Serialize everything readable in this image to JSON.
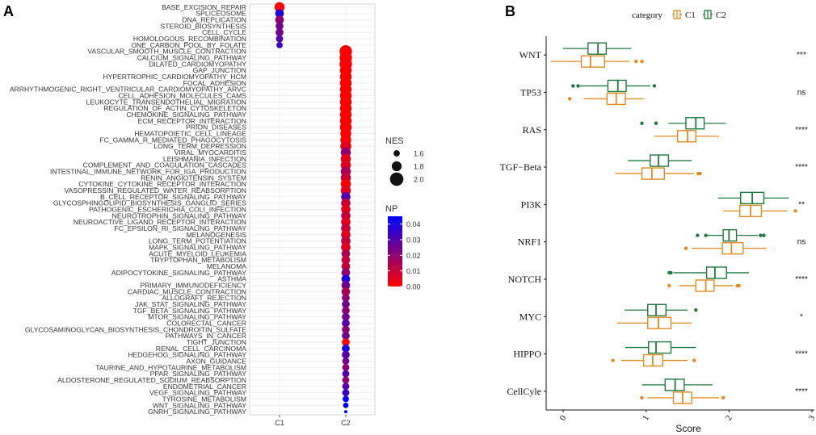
{
  "chart_data": [
    {
      "panel": "A",
      "type": "scatter",
      "subtype": "dot-plot",
      "x_categories": [
        "C1",
        "C2"
      ],
      "pathways": [
        "BASE_EXCISION_REPAIR",
        "SPLICEOSOME",
        "DNA_REPLICATION",
        "STEROID_BIOSYNTHESIS",
        "CELL_CYCLE",
        "HOMOLOGOUS_RECOMBINATION",
        "ONE_CARBON_POOL_BY_FOLATE",
        "VASCULAR_SMOOTH_MUSCLE_CONTRACTION",
        "CALCIUM_SIGNALING_PATHWAY",
        "DILATED_CARDIOMYOPATHY",
        "GAP_JUNCTION",
        "HYPERTROPHIC_CARDIOMYOPATHY_HCM",
        "FOCAL_ADHESION",
        "ARRHYTHMOGENIC_RIGHT_VENTRICULAR_CARDIOMYOPATHY_ARVC",
        "CELL_ADHESION_MOLECULES_CAMS",
        "LEUKOCYTE_TRANSENDOTHELIAL_MIGRATION",
        "REGULATION_OF_ACTIN_CYTOSKELETON",
        "CHEMOKINE_SIGNALING_PATHWAY",
        "ECM_RECEPTOR_INTERACTION",
        "PRION_DISEASES",
        "HEMATOPOIETIC_CELL_LINEAGE",
        "FC_GAMMA_R_MEDIATED_PHAGOCYTOSIS",
        "LONG_TERM_DEPRESSION",
        "VIRAL_MYOCARDITIS",
        "LEISHMANIA_INFECTION",
        "COMPLEMENT_AND_COAGULATION_CASCADES",
        "INTESTINAL_IMMUNE_NETWORK_FOR_IGA_PRODUCTION",
        "RENIN_ANGIOTENSIN_SYSTEM",
        "CYTOKINE_CYTOKINE_RECEPTOR_INTERACTION",
        "VASOPRESSIN_REGULATED_WATER_REABSORPTION",
        "B_CELL_RECEPTOR_SIGNALING_PATHWAY",
        "GLYCOSPHINGOLIPID_BIOSYNTHESIS_GANGLIO_SERIES",
        "PATHOGENIC_ESCHERICHIA_COLI_INFECTION",
        "NEUROTROPHIN_SIGNALING_PATHWAY",
        "NEUROACTIVE_LIGAND_RECEPTOR_INTERACTION",
        "FC_EPSILON_RI_SIGNALING_PATHWAY",
        "MELANOGENESIS",
        "LONG_TERM_POTENTIATION",
        "MAPK_SIGNALING_PATHWAY",
        "ACUTE_MYELOID_LEUKEMIA",
        "TRYPTOPHAN_METABOLISM",
        "MELANOMA",
        "ADIPOCYTOKINE_SIGNALING_PATHWAY",
        "ASTHMA",
        "PRIMARY_IMMUNODEFICIENCY",
        "CARDIAC_MUSCLE_CONTRACTION",
        "ALLOGRAFT_REJECTION",
        "JAK_STAT_SIGNALING_PATHWAY",
        "TGF_BETA_SIGNALING_PATHWAY",
        "MTOR_SIGNALING_PATHWAY",
        "COLORECTAL_CANCER",
        "GLYCOSAMINOGLYCAN_BIOSYNTHESIS_CHONDROITIN_SULFATE",
        "PATHWAYS_IN_CANCER",
        "TIGHT_JUNCTION",
        "RENAL_CELL_CARCINOMA",
        "HEDGEHOG_SIGNALING_PATHWAY",
        "AXON_GUIDANCE",
        "TAURINE_AND_HYPOTAURINE_METABOLISM",
        "PPAR_SIGNALING_PATHWAY",
        "ALDOSTERONE_REGULATED_SODIUM_REABSORPTION",
        "ENDOMETRIAL_CANCER",
        "VEGF_SIGNALING_PATHWAY",
        "TYROSINE_METABOLISM",
        "WNT_SIGNALING_PATHWAY",
        "GNRH_SIGNALING_PATHWAY"
      ],
      "points": [
        {
          "pathway": "BASE_EXCISION_REPAIR",
          "group": "C1",
          "nes": 1.9,
          "np": 0.0
        },
        {
          "pathway": "SPLICEOSOME",
          "group": "C1",
          "nes": 1.8,
          "np": 0.04
        },
        {
          "pathway": "DNA_REPLICATION",
          "group": "C1",
          "nes": 1.8,
          "np": 0.02
        },
        {
          "pathway": "STEROID_BIOSYNTHESIS",
          "group": "C1",
          "nes": 1.75,
          "np": 0.025
        },
        {
          "pathway": "CELL_CYCLE",
          "group": "C1",
          "nes": 1.75,
          "np": 0.025
        },
        {
          "pathway": "HOMOLOGOUS_RECOMBINATION",
          "group": "C1",
          "nes": 1.7,
          "np": 0.03
        },
        {
          "pathway": "ONE_CARBON_POOL_BY_FOLATE",
          "group": "C1",
          "nes": 1.65,
          "np": 0.035
        },
        {
          "pathway": "VASCULAR_SMOOTH_MUSCLE_CONTRACTION",
          "group": "C2",
          "nes": 2.05,
          "np": 0.0
        },
        {
          "pathway": "CALCIUM_SIGNALING_PATHWAY",
          "group": "C2",
          "nes": 2.05,
          "np": 0.0
        },
        {
          "pathway": "DILATED_CARDIOMYOPATHY",
          "group": "C2",
          "nes": 2.05,
          "np": 0.0
        },
        {
          "pathway": "GAP_JUNCTION",
          "group": "C2",
          "nes": 2.0,
          "np": 0.0
        },
        {
          "pathway": "HYPERTROPHIC_CARDIOMYOPATHY_HCM",
          "group": "C2",
          "nes": 2.0,
          "np": 0.0
        },
        {
          "pathway": "FOCAL_ADHESION",
          "group": "C2",
          "nes": 2.0,
          "np": 0.0
        },
        {
          "pathway": "ARRHYTHMOGENIC_RIGHT_VENTRICULAR_CARDIOMYOPATHY_ARVC",
          "group": "C2",
          "nes": 2.0,
          "np": 0.0
        },
        {
          "pathway": "CELL_ADHESION_MOLECULES_CAMS",
          "group": "C2",
          "nes": 2.0,
          "np": 0.0
        },
        {
          "pathway": "LEUKOCYTE_TRANSENDOTHELIAL_MIGRATION",
          "group": "C2",
          "nes": 2.0,
          "np": 0.0
        },
        {
          "pathway": "REGULATION_OF_ACTIN_CYTOSKELETON",
          "group": "C2",
          "nes": 2.0,
          "np": 0.0
        },
        {
          "pathway": "CHEMOKINE_SIGNALING_PATHWAY",
          "group": "C2",
          "nes": 2.0,
          "np": 0.0
        },
        {
          "pathway": "ECM_RECEPTOR_INTERACTION",
          "group": "C2",
          "nes": 2.0,
          "np": 0.0
        },
        {
          "pathway": "PRION_DISEASES",
          "group": "C2",
          "nes": 2.0,
          "np": 0.0
        },
        {
          "pathway": "HEMATOPOIETIC_CELL_LINEAGE",
          "group": "C2",
          "nes": 1.95,
          "np": 0.0
        },
        {
          "pathway": "FC_GAMMA_R_MEDIATED_PHAGOCYTOSIS",
          "group": "C2",
          "nes": 1.95,
          "np": 0.0
        },
        {
          "pathway": "LONG_TERM_DEPRESSION",
          "group": "C2",
          "nes": 1.95,
          "np": 0.005
        },
        {
          "pathway": "VIRAL_MYOCARDITIS",
          "group": "C2",
          "nes": 1.9,
          "np": 0.02
        },
        {
          "pathway": "LEISHMANIA_INFECTION",
          "group": "C2",
          "nes": 1.9,
          "np": 0.005
        },
        {
          "pathway": "COMPLEMENT_AND_COAGULATION_CASCADES",
          "group": "C2",
          "nes": 1.9,
          "np": 0.005
        },
        {
          "pathway": "INTESTINAL_IMMUNE_NETWORK_FOR_IGA_PRODUCTION",
          "group": "C2",
          "nes": 1.9,
          "np": 0.015
        },
        {
          "pathway": "RENIN_ANGIOTENSIN_SYSTEM",
          "group": "C2",
          "nes": 1.9,
          "np": 0.01
        },
        {
          "pathway": "CYTOKINE_CYTOKINE_RECEPTOR_INTERACTION",
          "group": "C2",
          "nes": 1.9,
          "np": 0.0
        },
        {
          "pathway": "VASOPRESSIN_REGULATED_WATER_REABSORPTION",
          "group": "C2",
          "nes": 1.9,
          "np": 0.005
        },
        {
          "pathway": "B_CELL_RECEPTOR_SIGNALING_PATHWAY",
          "group": "C2",
          "nes": 1.85,
          "np": 0.03
        },
        {
          "pathway": "GLYCOSPHINGOLIPID_BIOSYNTHESIS_GANGLIO_SERIES",
          "group": "C2",
          "nes": 1.85,
          "np": 0.01
        },
        {
          "pathway": "PATHOGENIC_ESCHERICHIA_COLI_INFECTION",
          "group": "C2",
          "nes": 1.85,
          "np": 0.005
        },
        {
          "pathway": "NEUROTROPHIN_SIGNALING_PATHWAY",
          "group": "C2",
          "nes": 1.85,
          "np": 0.01
        },
        {
          "pathway": "NEUROACTIVE_LIGAND_RECEPTOR_INTERACTION",
          "group": "C2",
          "nes": 1.85,
          "np": 0.005
        },
        {
          "pathway": "FC_EPSILON_RI_SIGNALING_PATHWAY",
          "group": "C2",
          "nes": 1.85,
          "np": 0.01
        },
        {
          "pathway": "MELANOGENESIS",
          "group": "C2",
          "nes": 1.85,
          "np": 0.005
        },
        {
          "pathway": "LONG_TERM_POTENTIATION",
          "group": "C2",
          "nes": 1.85,
          "np": 0.01
        },
        {
          "pathway": "MAPK_SIGNALING_PATHWAY",
          "group": "C2",
          "nes": 1.85,
          "np": 0.005
        },
        {
          "pathway": "ACUTE_MYELOID_LEUKEMIA",
          "group": "C2",
          "nes": 1.8,
          "np": 0.015
        },
        {
          "pathway": "TRYPTOPHAN_METABOLISM",
          "group": "C2",
          "nes": 1.8,
          "np": 0.01
        },
        {
          "pathway": "MELANOMA",
          "group": "C2",
          "nes": 1.8,
          "np": 0.01
        },
        {
          "pathway": "ADIPOCYTOKINE_SIGNALING_PATHWAY",
          "group": "C2",
          "nes": 1.8,
          "np": 0.02
        },
        {
          "pathway": "ASTHMA",
          "group": "C2",
          "nes": 1.8,
          "np": 0.04
        },
        {
          "pathway": "PRIMARY_IMMUNODEFICIENCY",
          "group": "C2",
          "nes": 1.8,
          "np": 0.025
        },
        {
          "pathway": "CARDIAC_MUSCLE_CONTRACTION",
          "group": "C2",
          "nes": 1.8,
          "np": 0.015
        },
        {
          "pathway": "ALLOGRAFT_REJECTION",
          "group": "C2",
          "nes": 1.75,
          "np": 0.02
        },
        {
          "pathway": "JAK_STAT_SIGNALING_PATHWAY",
          "group": "C2",
          "nes": 1.75,
          "np": 0.025
        },
        {
          "pathway": "TGF_BETA_SIGNALING_PATHWAY",
          "group": "C2",
          "nes": 1.75,
          "np": 0.02
        },
        {
          "pathway": "MTOR_SIGNALING_PATHWAY",
          "group": "C2",
          "nes": 1.75,
          "np": 0.025
        },
        {
          "pathway": "COLORECTAL_CANCER",
          "group": "C2",
          "nes": 1.75,
          "np": 0.03
        },
        {
          "pathway": "GLYCOSAMINOGLYCAN_BIOSYNTHESIS_CHONDROITIN_SULFATE",
          "group": "C2",
          "nes": 1.75,
          "np": 0.02
        },
        {
          "pathway": "PATHWAYS_IN_CANCER",
          "group": "C2",
          "nes": 1.75,
          "np": 0.025
        },
        {
          "pathway": "TIGHT_JUNCTION",
          "group": "C2",
          "nes": 1.75,
          "np": 0.0
        },
        {
          "pathway": "RENAL_CELL_CARCINOMA",
          "group": "C2",
          "nes": 1.75,
          "np": 0.04
        },
        {
          "pathway": "HEDGEHOG_SIGNALING_PATHWAY",
          "group": "C2",
          "nes": 1.75,
          "np": 0.03
        },
        {
          "pathway": "AXON_GUIDANCE",
          "group": "C2",
          "nes": 1.7,
          "np": 0.025
        },
        {
          "pathway": "TAURINE_AND_HYPOTAURINE_METABOLISM",
          "group": "C2",
          "nes": 1.7,
          "np": 0.02
        },
        {
          "pathway": "PPAR_SIGNALING_PATHWAY",
          "group": "C2",
          "nes": 1.7,
          "np": 0.03
        },
        {
          "pathway": "ALDOSTERONE_REGULATED_SODIUM_REABSORPTION",
          "group": "C2",
          "nes": 1.7,
          "np": 0.02
        },
        {
          "pathway": "ENDOMETRIAL_CANCER",
          "group": "C2",
          "nes": 1.7,
          "np": 0.03
        },
        {
          "pathway": "VEGF_SIGNALING_PATHWAY",
          "group": "C2",
          "nes": 1.7,
          "np": 0.035
        },
        {
          "pathway": "TYROSINE_METABOLISM",
          "group": "C2",
          "nes": 1.65,
          "np": 0.045
        },
        {
          "pathway": "WNT_SIGNALING_PATHWAY",
          "group": "C2",
          "nes": 1.6,
          "np": 0.045
        },
        {
          "pathway": "GNRH_SIGNALING_PATHWAY",
          "group": "C2",
          "nes": 1.45,
          "np": 0.045
        }
      ],
      "legend_size": {
        "title": "NES",
        "values": [
          1.6,
          1.8,
          2.0
        ],
        "labels": [
          "1.6",
          "1.8",
          "2.0"
        ]
      },
      "legend_color": {
        "title": "NP",
        "min": 0.0,
        "max": 0.045,
        "ticks": [
          0.0,
          0.01,
          0.02,
          0.03,
          0.04
        ],
        "labels": [
          "0.00",
          "0.01",
          "0.02",
          "0.03",
          "0.04"
        ],
        "low_color": "#ff0000",
        "high_color": "#0000ff"
      }
    },
    {
      "panel": "B",
      "type": "boxplot",
      "orientation": "horizontal",
      "xlabel": "Score",
      "xlim": [
        -0.2,
        3.0
      ],
      "x_ticks": [
        0,
        1,
        2,
        3
      ],
      "x_tick_labels": [
        "0",
        "1",
        "2",
        "3"
      ],
      "legend_title": "category",
      "series": [
        {
          "name": "C1",
          "color": "#e58a1f"
        },
        {
          "name": "C2",
          "color": "#1f7a3f"
        }
      ],
      "categories": [
        "WNT",
        "TP53",
        "RAS",
        "TGF−Beta",
        "PI3K",
        "NRF1",
        "NOTCH",
        "MYC",
        "HIPPO",
        "CellCyle"
      ],
      "significance": [
        "***",
        "ns",
        "****",
        "****",
        "**",
        "ns",
        "****",
        "*",
        "****",
        "****"
      ],
      "boxes": {
        "C1": [
          {
            "min": -0.15,
            "q1": 0.22,
            "median": 0.33,
            "q3": 0.5,
            "max": 0.8,
            "outliers": [
              0.88,
              0.95
            ]
          },
          {
            "min": 0.25,
            "q1": 0.53,
            "median": 0.64,
            "q3": 0.75,
            "max": 0.97,
            "outliers": [
              0.08
            ]
          },
          {
            "min": 1.1,
            "q1": 1.38,
            "median": 1.5,
            "q3": 1.6,
            "max": 1.88,
            "outliers": []
          },
          {
            "min": 0.63,
            "q1": 0.95,
            "median": 1.07,
            "q3": 1.22,
            "max": 1.58,
            "outliers": [
              1.63,
              1.65
            ]
          },
          {
            "min": 1.93,
            "q1": 2.13,
            "median": 2.26,
            "q3": 2.39,
            "max": 2.7,
            "outliers": [
              2.8
            ]
          },
          {
            "min": 1.55,
            "q1": 1.92,
            "median": 2.03,
            "q3": 2.17,
            "max": 2.45,
            "outliers": [
              1.48
            ]
          },
          {
            "min": 1.4,
            "q1": 1.6,
            "median": 1.72,
            "q3": 1.82,
            "max": 2.05,
            "outliers": [
              1.28,
              2.1,
              2.12
            ]
          },
          {
            "min": 0.65,
            "q1": 1.02,
            "median": 1.15,
            "q3": 1.3,
            "max": 1.55,
            "outliers": []
          },
          {
            "min": 0.7,
            "q1": 0.97,
            "median": 1.08,
            "q3": 1.2,
            "max": 1.5,
            "outliers": [
              0.6,
              1.58
            ]
          },
          {
            "min": 1.02,
            "q1": 1.33,
            "median": 1.44,
            "q3": 1.55,
            "max": 1.88,
            "outliers": [
              0.95,
              1.93
            ]
          }
        ],
        "C2": [
          {
            "min": 0.0,
            "q1": 0.3,
            "median": 0.42,
            "q3": 0.52,
            "max": 0.82,
            "outliers": []
          },
          {
            "min": 0.2,
            "q1": 0.54,
            "median": 0.66,
            "q3": 0.76,
            "max": 1.05,
            "outliers": [
              0.12,
              0.18,
              1.1
            ]
          },
          {
            "min": 1.27,
            "q1": 1.48,
            "median": 1.6,
            "q3": 1.7,
            "max": 1.96,
            "outliers": [
              0.95,
              1.12
            ]
          },
          {
            "min": 0.78,
            "q1": 1.05,
            "median": 1.15,
            "q3": 1.27,
            "max": 1.55,
            "outliers": []
          },
          {
            "min": 1.87,
            "q1": 2.14,
            "median": 2.28,
            "q3": 2.42,
            "max": 2.72,
            "outliers": []
          },
          {
            "min": 1.72,
            "q1": 1.93,
            "median": 2.0,
            "q3": 2.09,
            "max": 2.35,
            "outliers": [
              1.62,
              1.72,
              2.38,
              2.42
            ]
          },
          {
            "min": 1.33,
            "q1": 1.73,
            "median": 1.83,
            "q3": 1.97,
            "max": 2.24,
            "outliers": [
              1.28,
              1.3
            ]
          },
          {
            "min": 0.74,
            "q1": 1.02,
            "median": 1.12,
            "q3": 1.24,
            "max": 1.5,
            "outliers": [
              1.6
            ]
          },
          {
            "min": 0.75,
            "q1": 1.03,
            "median": 1.12,
            "q3": 1.3,
            "max": 1.6,
            "outliers": []
          },
          {
            "min": 0.95,
            "q1": 1.23,
            "median": 1.35,
            "q3": 1.46,
            "max": 1.8,
            "outliers": []
          }
        ]
      }
    }
  ],
  "panel_labels": {
    "a": "A",
    "b": "B"
  }
}
